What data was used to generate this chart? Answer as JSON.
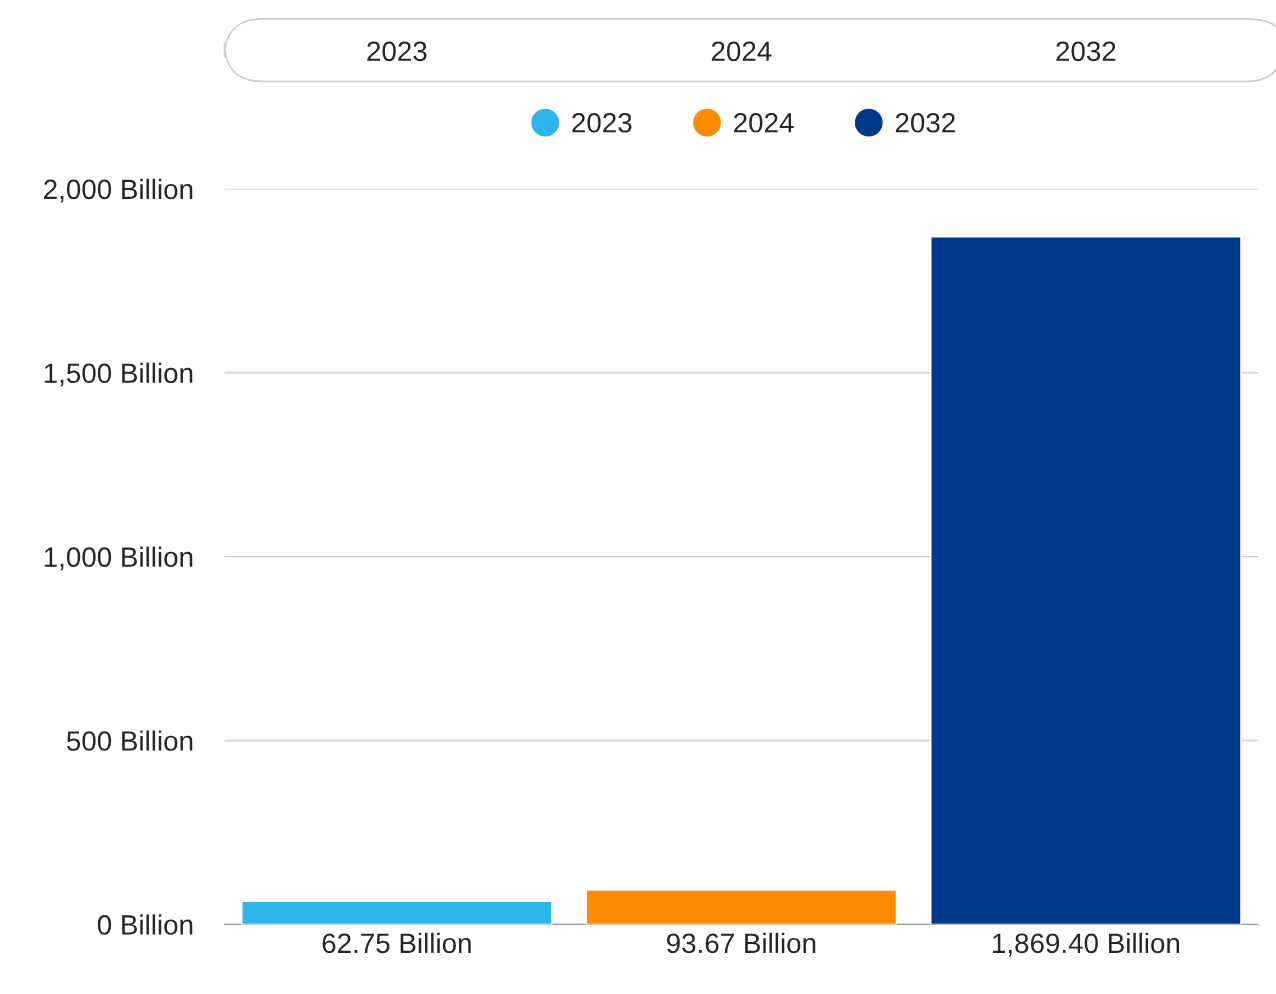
{
  "chart_data": {
    "type": "bar",
    "categories": [
      "2023",
      "2024",
      "2032"
    ],
    "series": [
      {
        "name": "2023",
        "color": "#2eb5ec",
        "values": [
          62.75,
          null,
          null
        ],
        "value_labels": [
          "62.75 Billion",
          null,
          null
        ]
      },
      {
        "name": "2024",
        "color": "#ff8c00",
        "values": [
          null,
          93.67,
          null
        ],
        "value_labels": [
          null,
          "93.67 Billion",
          null
        ]
      },
      {
        "name": "2032",
        "color": "#00388a",
        "values": [
          null,
          null,
          1869.4
        ],
        "value_labels": [
          null,
          null,
          "1,869.40 Billion"
        ]
      }
    ],
    "ylim": [
      0,
      2000
    ],
    "yticks": [
      {
        "value": 0,
        "label": "0 Billion"
      },
      {
        "value": 500,
        "label": "500 Billion"
      },
      {
        "value": 1000,
        "label": "1,000 Billion"
      },
      {
        "value": 1500,
        "label": "1,500 Billion"
      },
      {
        "value": 2000,
        "label": "2,000 Billion"
      }
    ],
    "grid": "y",
    "legend": "top"
  }
}
